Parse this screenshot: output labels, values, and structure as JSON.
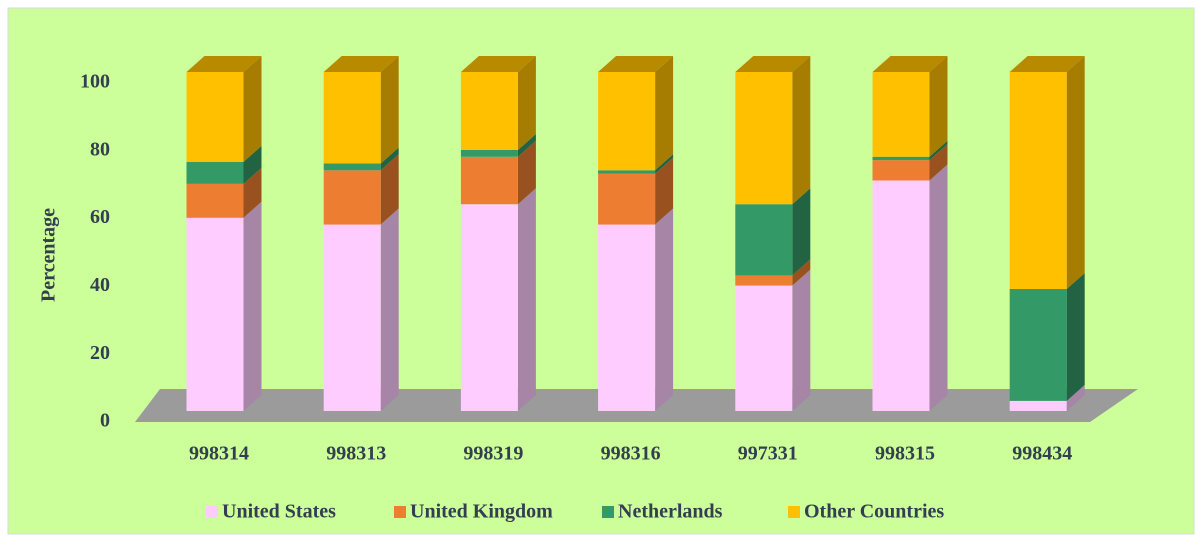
{
  "chart_data": {
    "type": "bar3d_stacked",
    "categories": [
      "998314",
      "998313",
      "998319",
      "998316",
      "997331",
      "998315",
      "998434"
    ],
    "series": [
      {
        "name": "United States",
        "color": "#ffccff",
        "values": [
          57,
          55,
          61,
          55,
          37,
          68,
          3
        ]
      },
      {
        "name": "United Kingdom",
        "color": "#ed7d31",
        "values": [
          10,
          16,
          14,
          15,
          3,
          6,
          0
        ]
      },
      {
        "name": "Netherlands",
        "color": "#339966",
        "values": [
          6.5,
          2,
          2,
          1,
          21,
          1,
          33
        ]
      },
      {
        "name": "Other Countries",
        "color": "#ffc000",
        "values": [
          26.5,
          27,
          23,
          29,
          39,
          25,
          64
        ]
      }
    ],
    "ylabel": "Percentage",
    "ylim": [
      0,
      100
    ],
    "yticks": [
      0,
      20,
      40,
      60,
      80,
      100
    ],
    "legend": "bottom"
  }
}
